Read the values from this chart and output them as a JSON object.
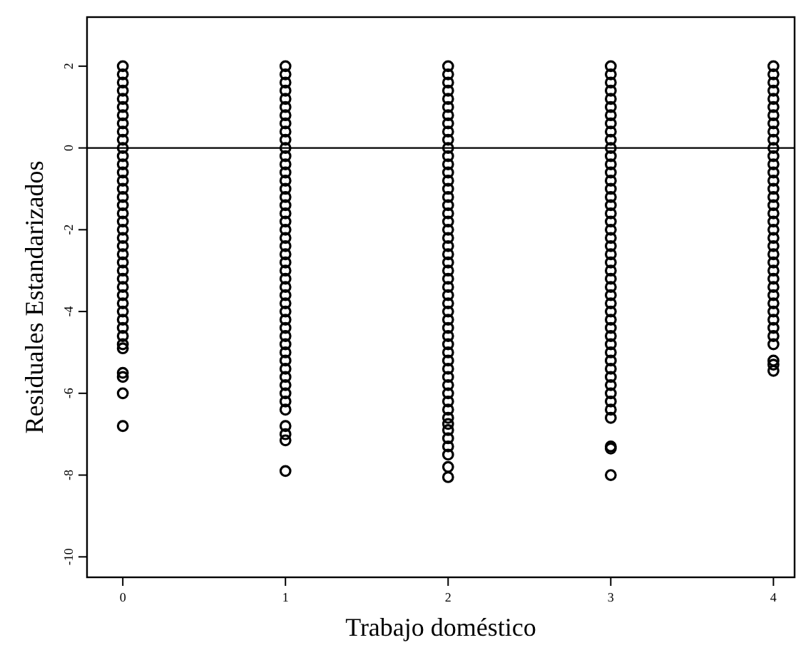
{
  "chart_data": {
    "type": "scatter",
    "xlabel": "Trabajo doméstico",
    "ylabel": "Residuales Estandarizados",
    "xlim": [
      -0.22,
      4.13
    ],
    "ylim": [
      -10.5,
      3.2
    ],
    "xticks": [
      0,
      1,
      2,
      3,
      4
    ],
    "yticks": [
      -10,
      -8,
      -6,
      -4,
      -2,
      0,
      2
    ],
    "grid": false,
    "marker": "circle",
    "ref_lines": [
      {
        "axis": "y",
        "value": 0,
        "color": "#000000"
      }
    ],
    "series": [
      {
        "color": "#000000",
        "x": [
          0,
          0,
          0,
          0,
          0,
          0,
          0,
          0,
          0,
          0,
          0,
          0,
          0,
          0,
          0,
          0,
          0,
          0,
          0,
          0,
          0,
          0,
          0,
          0,
          0,
          0,
          0,
          0,
          0,
          0,
          0,
          0,
          0,
          0,
          0,
          0,
          0,
          0,
          0,
          0
        ],
        "values": [
          2,
          1.8,
          1.6,
          1.4,
          1.2,
          1,
          0.8,
          0.6,
          0.4,
          0.2,
          0,
          -0.2,
          -0.4,
          -0.6,
          -0.8,
          -1,
          -1.2,
          -1.4,
          -1.6,
          -1.8,
          -2,
          -2.2,
          -2.4,
          -2.6,
          -2.8,
          -3,
          -3.2,
          -3.4,
          -3.6,
          -3.8,
          -4,
          -4.2,
          -4.4,
          -4.6,
          -4.8,
          -4.9,
          -5.5,
          -5.6,
          -6,
          -6.8
        ]
      },
      {
        "color": "#000000",
        "x": [
          1,
          1,
          1,
          1,
          1,
          1,
          1,
          1,
          1,
          1,
          1,
          1,
          1,
          1,
          1,
          1,
          1,
          1,
          1,
          1,
          1,
          1,
          1,
          1,
          1,
          1,
          1,
          1,
          1,
          1,
          1,
          1,
          1,
          1,
          1,
          1,
          1,
          1,
          1,
          1,
          1,
          1,
          1,
          1,
          1,
          1,
          1
        ],
        "values": [
          2,
          1.8,
          1.6,
          1.4,
          1.2,
          1,
          0.8,
          0.6,
          0.4,
          0.2,
          0,
          -0.2,
          -0.4,
          -0.6,
          -0.8,
          -1,
          -1.2,
          -1.4,
          -1.6,
          -1.8,
          -2,
          -2.2,
          -2.4,
          -2.6,
          -2.8,
          -3,
          -3.2,
          -3.4,
          -3.6,
          -3.8,
          -4,
          -4.2,
          -4.4,
          -4.6,
          -4.8,
          -5,
          -5.2,
          -5.4,
          -5.6,
          -5.8,
          -6,
          -6.2,
          -6.4,
          -6.8,
          -7,
          -7.15,
          -7.9
        ]
      },
      {
        "color": "#000000",
        "x": [
          2,
          2,
          2,
          2,
          2,
          2,
          2,
          2,
          2,
          2,
          2,
          2,
          2,
          2,
          2,
          2,
          2,
          2,
          2,
          2,
          2,
          2,
          2,
          2,
          2,
          2,
          2,
          2,
          2,
          2,
          2,
          2,
          2,
          2,
          2,
          2,
          2,
          2,
          2,
          2,
          2,
          2,
          2,
          2,
          2,
          2,
          2,
          2,
          2,
          2,
          2
        ],
        "values": [
          2,
          1.8,
          1.6,
          1.4,
          1.2,
          1,
          0.8,
          0.6,
          0.4,
          0.2,
          0,
          -0.2,
          -0.4,
          -0.6,
          -0.8,
          -1,
          -1.2,
          -1.4,
          -1.6,
          -1.8,
          -2,
          -2.2,
          -2.4,
          -2.6,
          -2.8,
          -3,
          -3.2,
          -3.4,
          -3.6,
          -3.8,
          -4,
          -4.2,
          -4.4,
          -4.6,
          -4.8,
          -5,
          -5.2,
          -5.4,
          -5.6,
          -5.8,
          -6,
          -6.2,
          -6.4,
          -6.6,
          -6.75,
          -6.9,
          -7.1,
          -7.3,
          -7.5,
          -7.8,
          -8.05
        ]
      },
      {
        "color": "#000000",
        "x": [
          3,
          3,
          3,
          3,
          3,
          3,
          3,
          3,
          3,
          3,
          3,
          3,
          3,
          3,
          3,
          3,
          3,
          3,
          3,
          3,
          3,
          3,
          3,
          3,
          3,
          3,
          3,
          3,
          3,
          3,
          3,
          3,
          3,
          3,
          3,
          3,
          3,
          3,
          3,
          3,
          3,
          3,
          3,
          3,
          3,
          3,
          3
        ],
        "values": [
          2,
          1.8,
          1.6,
          1.4,
          1.2,
          1,
          0.8,
          0.6,
          0.4,
          0.2,
          0,
          -0.2,
          -0.4,
          -0.6,
          -0.8,
          -1,
          -1.2,
          -1.4,
          -1.6,
          -1.8,
          -2,
          -2.2,
          -2.4,
          -2.6,
          -2.8,
          -3,
          -3.2,
          -3.4,
          -3.6,
          -3.8,
          -4,
          -4.2,
          -4.4,
          -4.6,
          -4.8,
          -5,
          -5.2,
          -5.4,
          -5.6,
          -5.8,
          -6,
          -6.2,
          -6.4,
          -6.6,
          -7.3,
          -7.35,
          -8
        ]
      },
      {
        "color": "#000000",
        "x": [
          4,
          4,
          4,
          4,
          4,
          4,
          4,
          4,
          4,
          4,
          4,
          4,
          4,
          4,
          4,
          4,
          4,
          4,
          4,
          4,
          4,
          4,
          4,
          4,
          4,
          4,
          4,
          4,
          4,
          4,
          4,
          4,
          4,
          4,
          4,
          4,
          4,
          4
        ],
        "values": [
          2,
          1.8,
          1.6,
          1.4,
          1.2,
          1,
          0.8,
          0.6,
          0.4,
          0.2,
          0,
          -0.2,
          -0.4,
          -0.6,
          -0.8,
          -1,
          -1.2,
          -1.4,
          -1.6,
          -1.8,
          -2,
          -2.2,
          -2.4,
          -2.6,
          -2.8,
          -3,
          -3.2,
          -3.4,
          -3.6,
          -3.8,
          -4,
          -4.2,
          -4.4,
          -4.6,
          -4.8,
          -5.2,
          -5.3,
          -5.45
        ]
      }
    ]
  }
}
